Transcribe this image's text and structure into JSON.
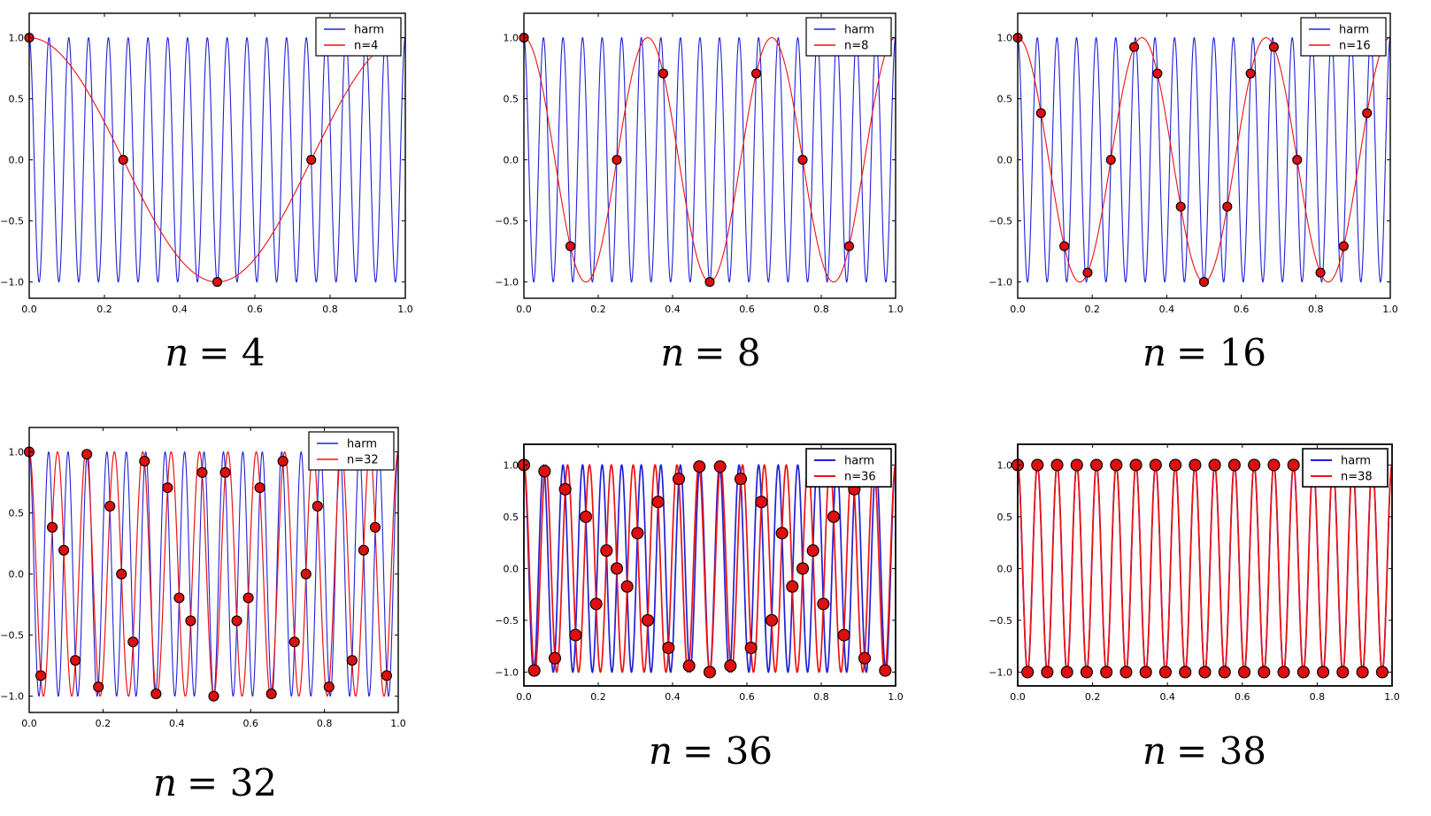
{
  "page": {
    "background": "#ffffff"
  },
  "style": {
    "harm_color": "#2020d8",
    "alias_color": "#ee1111",
    "marker_fill": "#dd0f0f",
    "marker_edge": "#000000",
    "axis_color": "#000000",
    "legend_background": "#ffffff",
    "legend_border": "#000000",
    "tick_label_color": "#000000"
  },
  "chart_data": [
    {
      "id": "n4",
      "type": "line",
      "caption": {
        "lhs": "n",
        "rhs": "= 4"
      },
      "legend": {
        "position": "upper right",
        "entries": [
          {
            "label": "harm",
            "color": "#2020d8"
          },
          {
            "label": "n=4",
            "color": "#ee1111"
          }
        ]
      },
      "x": {
        "lim": [
          0.0,
          1.0
        ],
        "ticks": [
          0.0,
          0.2,
          0.4,
          0.6,
          0.8,
          1.0
        ],
        "tick_labels": [
          "0.0",
          "0.2",
          "0.4",
          "0.6",
          "0.8",
          "1.0"
        ]
      },
      "y": {
        "lim": [
          -1.1333,
          1.2
        ],
        "ticks": [
          -1.0,
          -0.5,
          0.0,
          0.5,
          1.0
        ],
        "tick_labels": [
          "−1.0",
          "−0.5",
          "0.0",
          "0.5",
          "1.0"
        ]
      },
      "series": [
        {
          "name": "harm",
          "kind": "cosine",
          "frequency": 19,
          "amplitude": 1,
          "color": "#2020d8",
          "line_width": 1.1
        },
        {
          "name": "n=4",
          "kind": "cosine",
          "frequency": 1,
          "amplitude": 1,
          "color": "#ee1111",
          "line_width": 1.1
        }
      ],
      "samples": {
        "n": 4,
        "marker_radius": 5,
        "x": [
          0,
          0.25,
          0.5,
          0.75
        ],
        "y": [
          1,
          0,
          -1,
          0
        ]
      }
    },
    {
      "id": "n8",
      "type": "line",
      "caption": {
        "lhs": "n",
        "rhs": "= 8"
      },
      "legend": {
        "position": "upper right",
        "entries": [
          {
            "label": "harm",
            "color": "#2020d8"
          },
          {
            "label": "n=8",
            "color": "#ee1111"
          }
        ]
      },
      "x": {
        "lim": [
          0.0,
          1.0
        ],
        "ticks": [
          0.0,
          0.2,
          0.4,
          0.6,
          0.8,
          1.0
        ],
        "tick_labels": [
          "0.0",
          "0.2",
          "0.4",
          "0.6",
          "0.8",
          "1.0"
        ]
      },
      "y": {
        "lim": [
          -1.1333,
          1.2
        ],
        "ticks": [
          -1.0,
          -0.5,
          0.0,
          0.5,
          1.0
        ],
        "tick_labels": [
          "−1.0",
          "−0.5",
          "0.0",
          "0.5",
          "1.0"
        ]
      },
      "series": [
        {
          "name": "harm",
          "kind": "cosine",
          "frequency": 19,
          "amplitude": 1,
          "color": "#2020d8",
          "line_width": 1.1
        },
        {
          "name": "n=8",
          "kind": "cosine",
          "frequency": 3,
          "amplitude": 1,
          "color": "#ee1111",
          "line_width": 1.1
        }
      ],
      "samples": {
        "n": 8,
        "marker_radius": 5,
        "x": [
          0,
          0.125,
          0.25,
          0.375,
          0.5,
          0.625,
          0.75,
          0.875
        ],
        "y": [
          1,
          -0.7071,
          0,
          0.7071,
          -1,
          0.7071,
          0,
          -0.7071
        ]
      }
    },
    {
      "id": "n16",
      "type": "line",
      "caption": {
        "lhs": "n",
        "rhs": "= 16"
      },
      "legend": {
        "position": "upper right",
        "entries": [
          {
            "label": "harm",
            "color": "#2020d8"
          },
          {
            "label": "n=16",
            "color": "#ee1111"
          }
        ]
      },
      "x": {
        "lim": [
          0.0,
          1.0
        ],
        "ticks": [
          0.0,
          0.2,
          0.4,
          0.6,
          0.8,
          1.0
        ],
        "tick_labels": [
          "0.0",
          "0.2",
          "0.4",
          "0.6",
          "0.8",
          "1.0"
        ]
      },
      "y": {
        "lim": [
          -1.1333,
          1.2
        ],
        "ticks": [
          -1.0,
          -0.5,
          0.0,
          0.5,
          1.0
        ],
        "tick_labels": [
          "−1.0",
          "−0.5",
          "0.0",
          "0.5",
          "1.0"
        ]
      },
      "series": [
        {
          "name": "harm",
          "kind": "cosine",
          "frequency": 19,
          "amplitude": 1,
          "color": "#2020d8",
          "line_width": 1.1
        },
        {
          "name": "n=16",
          "kind": "cosine",
          "frequency": 3,
          "amplitude": 1,
          "color": "#ee1111",
          "line_width": 1.1
        }
      ],
      "samples": {
        "n": 16,
        "marker_radius": 5,
        "x": [
          0,
          0.0625,
          0.125,
          0.1875,
          0.25,
          0.3125,
          0.375,
          0.4375,
          0.5,
          0.5625,
          0.625,
          0.6875,
          0.75,
          0.8125,
          0.875,
          0.9375
        ],
        "y": [
          1,
          0.3827,
          -0.7071,
          -0.9239,
          0,
          0.9239,
          0.7071,
          -0.3827,
          -1,
          -0.3827,
          0.7071,
          0.9239,
          0,
          -0.9239,
          -0.7071,
          0.3827
        ]
      }
    },
    {
      "id": "n32",
      "type": "line",
      "caption": {
        "lhs": "n",
        "rhs": "= 32"
      },
      "legend": {
        "position": "upper right",
        "entries": [
          {
            "label": "harm",
            "color": "#2020d8"
          },
          {
            "label": "n=32",
            "color": "#ee1111"
          }
        ]
      },
      "x": {
        "lim": [
          0.0,
          1.0
        ],
        "ticks": [
          0.0,
          0.2,
          0.4,
          0.6,
          0.8,
          1.0
        ],
        "tick_labels": [
          "0.0",
          "0.2",
          "0.4",
          "0.6",
          "0.8",
          "1.0"
        ]
      },
      "y": {
        "lim": [
          -1.1333,
          1.2
        ],
        "ticks": [
          -1.0,
          -0.5,
          0.0,
          0.5,
          1.0
        ],
        "tick_labels": [
          "−1.0",
          "−0.5",
          "0.0",
          "0.5",
          "1.0"
        ]
      },
      "series": [
        {
          "name": "harm",
          "kind": "cosine",
          "frequency": 19,
          "amplitude": 1,
          "color": "#2020d8",
          "line_width": 1.1
        },
        {
          "name": "n=32",
          "kind": "cosine",
          "frequency": 13,
          "amplitude": 1,
          "color": "#ee1111",
          "line_width": 1.2
        }
      ],
      "samples": {
        "n": 32,
        "marker_radius": 5.5,
        "x": [
          0,
          0.03125,
          0.0625,
          0.09375,
          0.125,
          0.15625,
          0.1875,
          0.21875,
          0.25,
          0.28125,
          0.3125,
          0.34375,
          0.375,
          0.40625,
          0.4375,
          0.46875,
          0.5,
          0.53125,
          0.5625,
          0.59375,
          0.625,
          0.65625,
          0.6875,
          0.71875,
          0.75,
          0.78125,
          0.8125,
          0.84375,
          0.875,
          0.90625,
          0.9375,
          0.96875
        ],
        "y": [
          1,
          -0.8315,
          0.3827,
          0.1951,
          -0.7071,
          0.9808,
          -0.9239,
          0.5556,
          0,
          -0.5556,
          0.9239,
          -0.9808,
          0.7071,
          -0.1951,
          -0.3827,
          0.8315,
          -1,
          0.8315,
          -0.3827,
          -0.1951,
          0.7071,
          -0.9808,
          0.9239,
          -0.5556,
          0,
          0.5556,
          -0.9239,
          0.9808,
          -0.7071,
          0.1951,
          0.3827,
          -0.8315
        ]
      }
    },
    {
      "id": "n36",
      "type": "line",
      "caption": {
        "lhs": "n",
        "rhs": "= 36"
      },
      "legend": {
        "position": "upper right",
        "entries": [
          {
            "label": "harm",
            "color": "#2020d8"
          },
          {
            "label": "n=36",
            "color": "#ee1111"
          }
        ]
      },
      "x": {
        "lim": [
          0.0,
          1.0
        ],
        "ticks": [
          0.0,
          0.2,
          0.4,
          0.6,
          0.8,
          1.0
        ],
        "tick_labels": [
          "0.0",
          "0.2",
          "0.4",
          "0.6",
          "0.8",
          "1.0"
        ]
      },
      "y": {
        "lim": [
          -1.1333,
          1.2
        ],
        "ticks": [
          -1.0,
          -0.5,
          0.0,
          0.5,
          1.0
        ],
        "tick_labels": [
          "−1.0",
          "−0.5",
          "0.0",
          "0.5",
          "1.0"
        ]
      },
      "series": [
        {
          "name": "harm",
          "kind": "cosine",
          "frequency": 19,
          "amplitude": 1,
          "color": "#2020d8",
          "line_width": 1.7
        },
        {
          "name": "n=36",
          "kind": "cosine",
          "frequency": 17,
          "amplitude": 1,
          "color": "#ee1111",
          "line_width": 1.7
        }
      ],
      "samples": {
        "n": 36,
        "marker_radius": 6.5,
        "x": [
          0,
          0.0278,
          0.0556,
          0.0833,
          0.1111,
          0.1389,
          0.1667,
          0.1944,
          0.2222,
          0.25,
          0.2778,
          0.3056,
          0.3333,
          0.3611,
          0.3889,
          0.4167,
          0.4444,
          0.4722,
          0.5,
          0.5278,
          0.5556,
          0.5833,
          0.6111,
          0.6389,
          0.6667,
          0.6944,
          0.7222,
          0.75,
          0.7778,
          0.8056,
          0.8333,
          0.8611,
          0.8889,
          0.9167,
          0.9444,
          0.9722
        ],
        "y": [
          1,
          -0.9848,
          0.9397,
          -0.866,
          0.766,
          -0.6428,
          0.5,
          -0.342,
          0.1736,
          0,
          -0.1736,
          0.342,
          -0.5,
          0.6428,
          -0.766,
          0.866,
          -0.9397,
          0.9848,
          -1,
          0.9848,
          -0.9397,
          0.866,
          -0.766,
          0.6428,
          -0.5,
          0.342,
          -0.1736,
          0,
          0.1736,
          -0.342,
          0.5,
          -0.6428,
          0.766,
          -0.866,
          0.9397,
          -0.9848
        ]
      }
    },
    {
      "id": "n38",
      "type": "line",
      "caption": {
        "lhs": "n",
        "rhs": "= 38"
      },
      "legend": {
        "position": "upper right",
        "entries": [
          {
            "label": "harm",
            "color": "#2020d8"
          },
          {
            "label": "n=38",
            "color": "#ee1111"
          }
        ]
      },
      "x": {
        "lim": [
          0.0,
          1.0
        ],
        "ticks": [
          0.0,
          0.2,
          0.4,
          0.6,
          0.8,
          1.0
        ],
        "tick_labels": [
          "0.0",
          "0.2",
          "0.4",
          "0.6",
          "0.8",
          "1.0"
        ]
      },
      "y": {
        "lim": [
          -1.1333,
          1.2
        ],
        "ticks": [
          -1.0,
          -0.5,
          0.0,
          0.5,
          1.0
        ],
        "tick_labels": [
          "−1.0",
          "−0.5",
          "0.0",
          "0.5",
          "1.0"
        ]
      },
      "series": [
        {
          "name": "harm",
          "kind": "cosine",
          "frequency": 19,
          "amplitude": 1,
          "color": "#2020d8",
          "line_width": 1.7
        },
        {
          "name": "n=38",
          "kind": "cosine",
          "frequency": 19,
          "amplitude": 1,
          "color": "#ee1111",
          "line_width": 1.7
        }
      ],
      "samples": {
        "n": 38,
        "marker_radius": 6.5,
        "x": [
          0,
          0.0263,
          0.0526,
          0.0789,
          0.1053,
          0.1316,
          0.1579,
          0.1842,
          0.2105,
          0.2368,
          0.2632,
          0.2895,
          0.3158,
          0.3421,
          0.3684,
          0.3947,
          0.4211,
          0.4474,
          0.4737,
          0.5,
          0.5263,
          0.5526,
          0.5789,
          0.6053,
          0.6316,
          0.6579,
          0.6842,
          0.7105,
          0.7368,
          0.7632,
          0.7895,
          0.8158,
          0.8421,
          0.8684,
          0.8947,
          0.9211,
          0.9474,
          0.9737
        ],
        "y": [
          1,
          -1,
          1,
          -1,
          1,
          -1,
          1,
          -1,
          1,
          -1,
          1,
          -1,
          1,
          -1,
          1,
          -1,
          1,
          -1,
          1,
          -1,
          1,
          -1,
          1,
          -1,
          1,
          -1,
          1,
          -1,
          1,
          -1,
          1,
          -1,
          1,
          -1,
          1,
          -1,
          1,
          -1
        ]
      }
    }
  ]
}
